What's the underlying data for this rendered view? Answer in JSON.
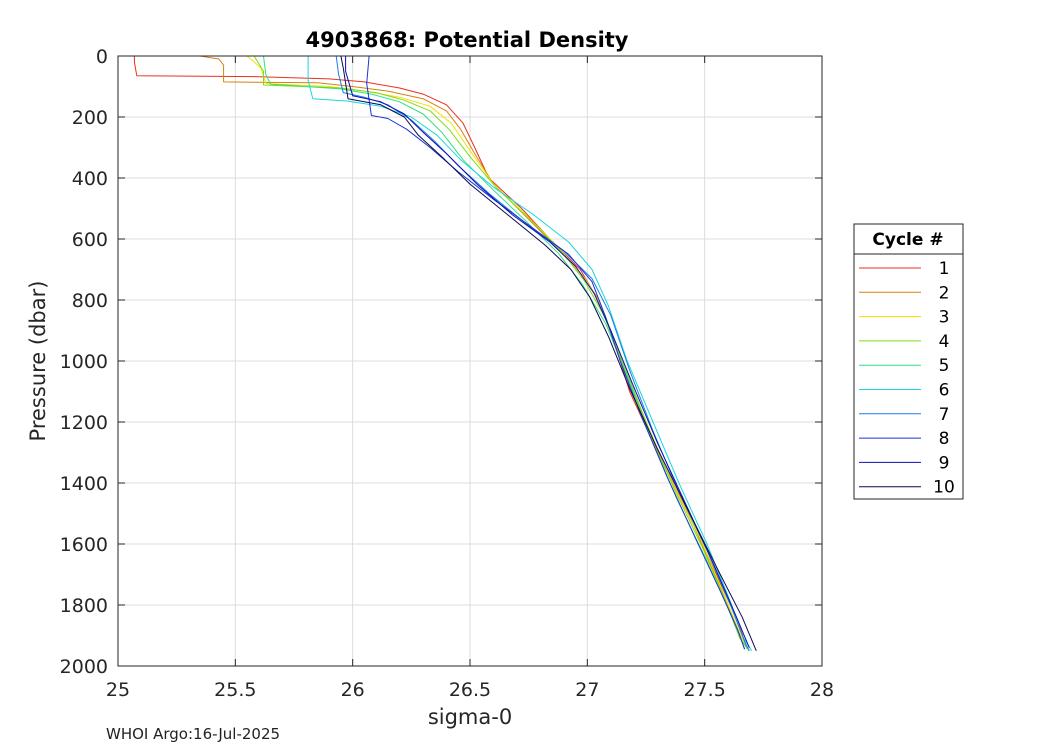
{
  "chart_data": {
    "type": "line",
    "title": "4903868: Potential Density",
    "xlabel": "sigma-0",
    "ylabel": "Pressure (dbar)",
    "xlim": [
      25,
      28
    ],
    "ylim": [
      0,
      2000
    ],
    "y_reversed": true,
    "grid": true,
    "xticks": [
      "25",
      "25.5",
      "26",
      "26.5",
      "27",
      "27.5",
      "28"
    ],
    "yticks": [
      "0",
      "200",
      "400",
      "600",
      "800",
      "1000",
      "1200",
      "1400",
      "1600",
      "1800",
      "2000"
    ],
    "legend": {
      "title": "Cycle #",
      "placement": "right"
    },
    "series": [
      {
        "name": "1",
        "color": "#e8311a",
        "points": [
          [
            25.07,
            0
          ],
          [
            25.07,
            20
          ],
          [
            25.08,
            65
          ],
          [
            25.6,
            68
          ],
          [
            25.9,
            75
          ],
          [
            26.05,
            85
          ],
          [
            26.2,
            105
          ],
          [
            26.3,
            125
          ],
          [
            26.4,
            160
          ],
          [
            26.47,
            220
          ],
          [
            26.52,
            300
          ],
          [
            26.58,
            400
          ],
          [
            26.72,
            500
          ],
          [
            26.84,
            600
          ],
          [
            26.97,
            700
          ],
          [
            27.03,
            780
          ],
          [
            27.1,
            900
          ],
          [
            27.18,
            1100
          ],
          [
            27.3,
            1300
          ],
          [
            27.43,
            1500
          ],
          [
            27.55,
            1700
          ],
          [
            27.64,
            1850
          ],
          [
            27.68,
            1940
          ]
        ]
      },
      {
        "name": "2",
        "color": "#d9800f",
        "points": [
          [
            25.35,
            0
          ],
          [
            25.43,
            10
          ],
          [
            25.45,
            30
          ],
          [
            25.45,
            85
          ],
          [
            25.85,
            88
          ],
          [
            26.0,
            100
          ],
          [
            26.15,
            115
          ],
          [
            26.3,
            140
          ],
          [
            26.4,
            180
          ],
          [
            26.46,
            240
          ],
          [
            26.52,
            320
          ],
          [
            26.6,
            420
          ],
          [
            26.73,
            520
          ],
          [
            26.86,
            620
          ],
          [
            26.98,
            720
          ],
          [
            27.05,
            800
          ],
          [
            27.12,
            950
          ],
          [
            27.22,
            1150
          ],
          [
            27.33,
            1350
          ],
          [
            27.46,
            1550
          ],
          [
            27.57,
            1750
          ],
          [
            27.65,
            1900
          ],
          [
            27.67,
            1945
          ]
        ]
      },
      {
        "name": "3",
        "color": "#f3e000",
        "points": [
          [
            25.55,
            0
          ],
          [
            25.61,
            40
          ],
          [
            25.63,
            90
          ],
          [
            25.9,
            100
          ],
          [
            26.05,
            115
          ],
          [
            26.2,
            135
          ],
          [
            26.33,
            165
          ],
          [
            26.42,
            220
          ],
          [
            26.5,
            310
          ],
          [
            26.6,
            420
          ],
          [
            26.75,
            530
          ],
          [
            26.88,
            630
          ],
          [
            26.99,
            730
          ],
          [
            27.06,
            820
          ],
          [
            27.14,
            980
          ],
          [
            27.24,
            1180
          ],
          [
            27.35,
            1380
          ],
          [
            27.48,
            1580
          ],
          [
            27.58,
            1760
          ],
          [
            27.66,
            1910
          ],
          [
            27.68,
            1945
          ]
        ]
      },
      {
        "name": "4",
        "color": "#7fdc1a",
        "points": [
          [
            25.58,
            0
          ],
          [
            25.62,
            50
          ],
          [
            25.62,
            95
          ],
          [
            25.95,
            105
          ],
          [
            26.1,
            120
          ],
          [
            26.22,
            145
          ],
          [
            26.33,
            180
          ],
          [
            26.41,
            240
          ],
          [
            26.5,
            330
          ],
          [
            26.61,
            430
          ],
          [
            26.76,
            540
          ],
          [
            26.89,
            640
          ],
          [
            26.99,
            740
          ],
          [
            27.07,
            850
          ],
          [
            27.16,
            1020
          ],
          [
            27.26,
            1220
          ],
          [
            27.37,
            1420
          ],
          [
            27.49,
            1610
          ],
          [
            27.59,
            1790
          ],
          [
            27.65,
            1910
          ],
          [
            27.69,
            1950
          ]
        ]
      },
      {
        "name": "5",
        "color": "#2fe07c",
        "points": [
          [
            25.62,
            0
          ],
          [
            25.63,
            60
          ],
          [
            25.65,
            92
          ],
          [
            25.95,
            108
          ],
          [
            26.08,
            125
          ],
          [
            26.2,
            150
          ],
          [
            26.3,
            190
          ],
          [
            26.38,
            250
          ],
          [
            26.47,
            340
          ],
          [
            26.6,
            440
          ],
          [
            26.75,
            550
          ],
          [
            26.88,
            650
          ],
          [
            26.98,
            750
          ],
          [
            27.08,
            880
          ],
          [
            27.17,
            1050
          ],
          [
            27.27,
            1250
          ],
          [
            27.38,
            1450
          ],
          [
            27.5,
            1640
          ],
          [
            27.6,
            1810
          ],
          [
            27.66,
            1920
          ],
          [
            27.69,
            1950
          ]
        ]
      },
      {
        "name": "6",
        "color": "#1ad6e0",
        "points": [
          [
            25.81,
            0
          ],
          [
            25.81,
            80
          ],
          [
            25.83,
            140
          ],
          [
            25.98,
            148
          ],
          [
            26.12,
            165
          ],
          [
            26.25,
            200
          ],
          [
            26.36,
            260
          ],
          [
            26.46,
            340
          ],
          [
            26.6,
            430
          ],
          [
            26.77,
            520
          ],
          [
            26.92,
            610
          ],
          [
            27.02,
            700
          ],
          [
            27.09,
            820
          ],
          [
            27.17,
            1000
          ],
          [
            27.28,
            1200
          ],
          [
            27.39,
            1400
          ],
          [
            27.51,
            1600
          ],
          [
            27.61,
            1790
          ],
          [
            27.66,
            1900
          ],
          [
            27.7,
            1950
          ]
        ]
      },
      {
        "name": "7",
        "color": "#1a7fe0",
        "points": [
          [
            25.93,
            0
          ],
          [
            25.94,
            60
          ],
          [
            25.96,
            120
          ],
          [
            26.05,
            135
          ],
          [
            26.15,
            160
          ],
          [
            26.25,
            210
          ],
          [
            26.35,
            280
          ],
          [
            26.45,
            360
          ],
          [
            26.58,
            450
          ],
          [
            26.74,
            550
          ],
          [
            26.9,
            640
          ],
          [
            27.02,
            730
          ],
          [
            27.1,
            850
          ],
          [
            27.18,
            1030
          ],
          [
            27.28,
            1230
          ],
          [
            27.39,
            1430
          ],
          [
            27.51,
            1620
          ],
          [
            27.61,
            1800
          ],
          [
            27.67,
            1920
          ],
          [
            27.69,
            1950
          ]
        ]
      },
      {
        "name": "8",
        "color": "#1a33d6",
        "points": [
          [
            26.07,
            0
          ],
          [
            26.06,
            90
          ],
          [
            26.08,
            195
          ],
          [
            26.15,
            205
          ],
          [
            26.23,
            240
          ],
          [
            26.33,
            300
          ],
          [
            26.45,
            380
          ],
          [
            26.6,
            470
          ],
          [
            26.76,
            560
          ],
          [
            26.92,
            650
          ],
          [
            27.02,
            740
          ],
          [
            27.08,
            860
          ],
          [
            27.14,
            1000
          ],
          [
            27.23,
            1180
          ],
          [
            27.34,
            1380
          ],
          [
            27.46,
            1580
          ],
          [
            27.57,
            1760
          ],
          [
            27.64,
            1880
          ],
          [
            27.67,
            1945
          ]
        ]
      },
      {
        "name": "9",
        "color": "#0f0fb8",
        "points": [
          [
            25.97,
            0
          ],
          [
            25.97,
            50
          ],
          [
            26.0,
            130
          ],
          [
            26.12,
            150
          ],
          [
            26.22,
            190
          ],
          [
            26.3,
            250
          ],
          [
            26.4,
            320
          ],
          [
            26.53,
            420
          ],
          [
            26.68,
            520
          ],
          [
            26.84,
            610
          ],
          [
            26.95,
            690
          ],
          [
            27.03,
            780
          ],
          [
            27.1,
            900
          ],
          [
            27.19,
            1070
          ],
          [
            27.3,
            1270
          ],
          [
            27.42,
            1470
          ],
          [
            27.54,
            1670
          ],
          [
            27.63,
            1830
          ],
          [
            27.69,
            1940
          ]
        ]
      },
      {
        "name": "10",
        "color": "#0a0a50",
        "points": [
          [
            25.95,
            0
          ],
          [
            25.96,
            40
          ],
          [
            25.98,
            140
          ],
          [
            26.12,
            160
          ],
          [
            26.22,
            200
          ],
          [
            26.28,
            260
          ],
          [
            26.38,
            330
          ],
          [
            26.5,
            420
          ],
          [
            26.66,
            520
          ],
          [
            26.82,
            620
          ],
          [
            26.93,
            700
          ],
          [
            27.01,
            790
          ],
          [
            27.09,
            920
          ],
          [
            27.18,
            1090
          ],
          [
            27.3,
            1290
          ],
          [
            27.43,
            1490
          ],
          [
            27.56,
            1690
          ],
          [
            27.66,
            1840
          ],
          [
            27.72,
            1950
          ]
        ]
      }
    ]
  },
  "credit": "WHOI Argo:16-Jul-2025"
}
